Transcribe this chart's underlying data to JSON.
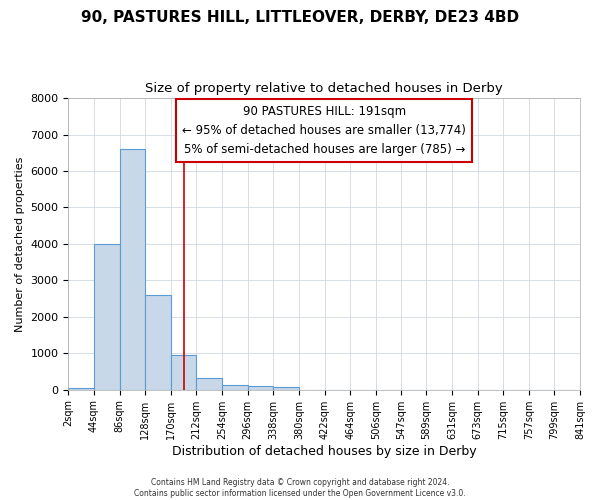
{
  "title": "90, PASTURES HILL, LITTLEOVER, DERBY, DE23 4BD",
  "subtitle": "Size of property relative to detached houses in Derby",
  "xlabel": "Distribution of detached houses by size in Derby",
  "ylabel": "Number of detached properties",
  "bin_labels": [
    "2sqm",
    "44sqm",
    "86sqm",
    "128sqm",
    "170sqm",
    "212sqm",
    "254sqm",
    "296sqm",
    "338sqm",
    "380sqm",
    "422sqm",
    "464sqm",
    "506sqm",
    "547sqm",
    "589sqm",
    "631sqm",
    "673sqm",
    "715sqm",
    "757sqm",
    "799sqm",
    "841sqm"
  ],
  "bin_edges": [
    2,
    44,
    86,
    128,
    170,
    212,
    254,
    296,
    338,
    380,
    422,
    464,
    506,
    547,
    589,
    631,
    673,
    715,
    757,
    799,
    841
  ],
  "bar_heights": [
    50,
    4000,
    6600,
    2600,
    950,
    320,
    130,
    100,
    70,
    0,
    0,
    0,
    0,
    0,
    0,
    0,
    0,
    0,
    0,
    0
  ],
  "bar_color": "#c8d8e8",
  "bar_edge_color": "#5b9bd5",
  "property_size": 191,
  "vline_color": "#cc0000",
  "annotation_text": "90 PASTURES HILL: 191sqm\n← 95% of detached houses are smaller (13,774)\n5% of semi-detached houses are larger (785) →",
  "annotation_box_color": "#cc0000",
  "ylim": [
    0,
    8000
  ],
  "yticks": [
    0,
    1000,
    2000,
    3000,
    4000,
    5000,
    6000,
    7000,
    8000
  ],
  "footer_line1": "Contains HM Land Registry data © Crown copyright and database right 2024.",
  "footer_line2": "Contains public sector information licensed under the Open Government Licence v3.0.",
  "background_color": "#ffffff",
  "plot_bg_color": "#ffffff",
  "grid_color": "#d0d8e0",
  "title_fontsize": 11,
  "subtitle_fontsize": 9.5
}
